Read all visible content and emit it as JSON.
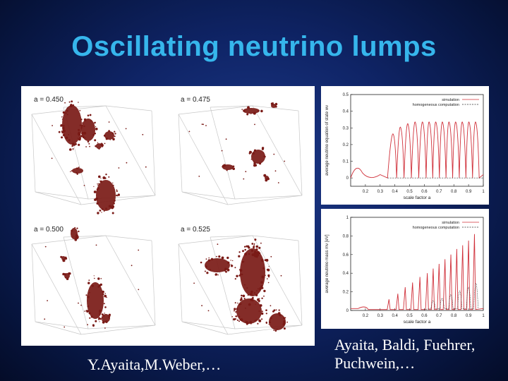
{
  "slide": {
    "title": "Oscillating neutrino lumps",
    "credit_left": "Y.Ayaita,M.Weber,…",
    "credit_right_line1": "Ayaita, Baldi, Fuehrer,",
    "credit_right_line2": "Puchwein,…"
  },
  "simulation": {
    "panels": [
      {
        "label": "a = 0.450"
      },
      {
        "label": "a = 0.475"
      },
      {
        "label": "a = 0.500"
      },
      {
        "label": "a = 0.525"
      }
    ],
    "lump_color": "#7a1a16"
  },
  "chart_data": [
    {
      "type": "line",
      "xlabel": "scale factor a",
      "ylabel": "average neutrino equation of state wν",
      "xlim": [
        0.1,
        1.0
      ],
      "ylim": [
        -0.05,
        0.5
      ],
      "xticks": [
        "0.2",
        "0.3",
        "0.4",
        "0.5",
        "0.6",
        "0.7",
        "0.8",
        "0.9",
        "1"
      ],
      "yticks": [
        "0",
        "0.1",
        "0.2",
        "0.3",
        "0.4",
        "0.5"
      ],
      "legend_position": "top-right",
      "series": [
        {
          "name": "simulation",
          "color": "#d0303a",
          "peaks_x": [
            0.39,
            0.44,
            0.49,
            0.54,
            0.59,
            0.635,
            0.68,
            0.725,
            0.77,
            0.815,
            0.86,
            0.905,
            0.95
          ],
          "peaks_y": [
            0.26,
            0.3,
            0.32,
            0.33,
            0.33,
            0.33,
            0.33,
            0.33,
            0.33,
            0.33,
            0.33,
            0.33,
            0.33
          ]
        },
        {
          "name": "homogeneous computation",
          "color": "#333333",
          "value": 0
        }
      ]
    },
    {
      "type": "line",
      "xlabel": "scale factor a",
      "ylabel": "average neutrino mass mν [eV]",
      "xlim": [
        0.1,
        1.0
      ],
      "ylim": [
        0,
        1.0
      ],
      "xticks": [
        "0.2",
        "0.3",
        "0.4",
        "0.5",
        "0.6",
        "0.7",
        "0.8",
        "0.9",
        "1"
      ],
      "yticks": [
        "0",
        "0.2",
        "0.4",
        "0.6",
        "0.8",
        "1"
      ],
      "legend_position": "top-right",
      "series": [
        {
          "name": "simulation",
          "color": "#d0303a",
          "peaks_x": [
            0.36,
            0.42,
            0.47,
            0.52,
            0.57,
            0.62,
            0.66,
            0.7,
            0.74,
            0.78,
            0.82,
            0.86,
            0.9,
            0.94
          ],
          "peaks_y": [
            0.12,
            0.18,
            0.25,
            0.3,
            0.36,
            0.4,
            0.45,
            0.5,
            0.55,
            0.6,
            0.66,
            0.7,
            0.75,
            0.82
          ]
        },
        {
          "name": "homogeneous computation",
          "color": "#333333",
          "peaks_x": [
            0.66,
            0.72,
            0.78,
            0.84,
            0.9,
            0.95
          ],
          "peaks_y": [
            0.12,
            0.15,
            0.2,
            0.25,
            0.3,
            0.35
          ]
        }
      ]
    }
  ]
}
